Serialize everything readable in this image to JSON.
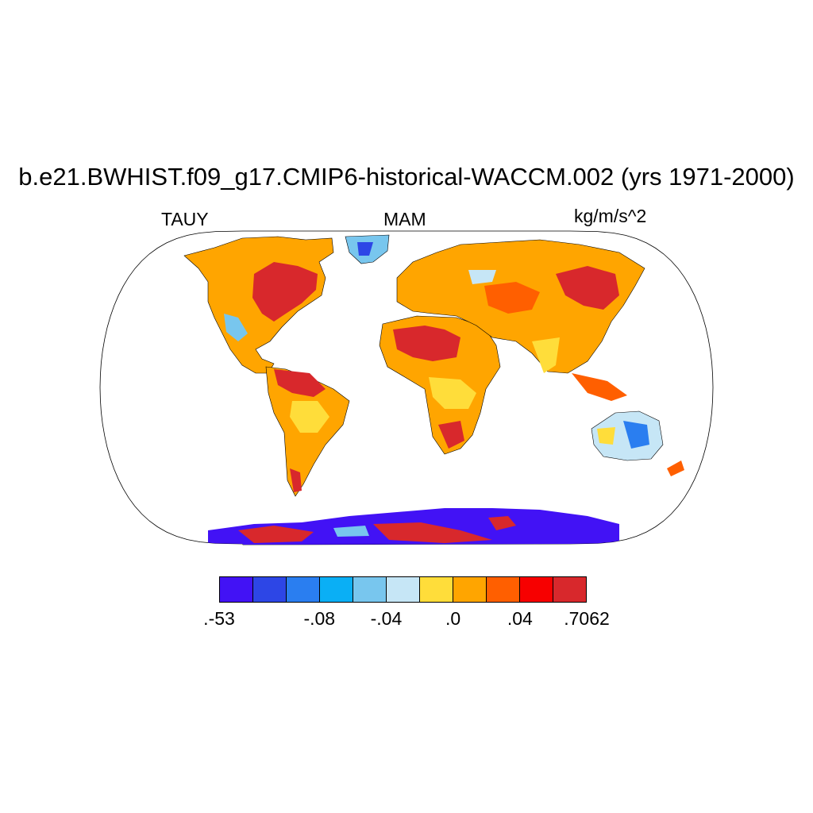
{
  "title": "b.e21.BWHIST.f09_g17.CMIP6-historical-WACCM.002 (yrs 1971-2000)",
  "left_label": "TAUY",
  "center_label": "MAM",
  "right_label": "kg/m/s^2",
  "colorbar": {
    "colors": [
      "#4212f5",
      "#2d46e6",
      "#2a7ef0",
      "#0aaff5",
      "#78c6ee",
      "#c6e6f6",
      "#ffdd3a",
      "#ffa500",
      "#ff5f00",
      "#f70000",
      "#d8282c"
    ],
    "labels": [
      {
        "text": ".-53",
        "boundary": 0
      },
      {
        "text": "-.08",
        "boundary": 3
      },
      {
        "text": "-.04",
        "boundary": 5
      },
      {
        "text": ".0",
        "boundary": 7
      },
      {
        "text": ".04",
        "boundary": 9
      },
      {
        "text": ".7062",
        "boundary": 11
      }
    ]
  },
  "map": {
    "projection": "robinson",
    "variable": "TAUY",
    "season": "MAM"
  }
}
